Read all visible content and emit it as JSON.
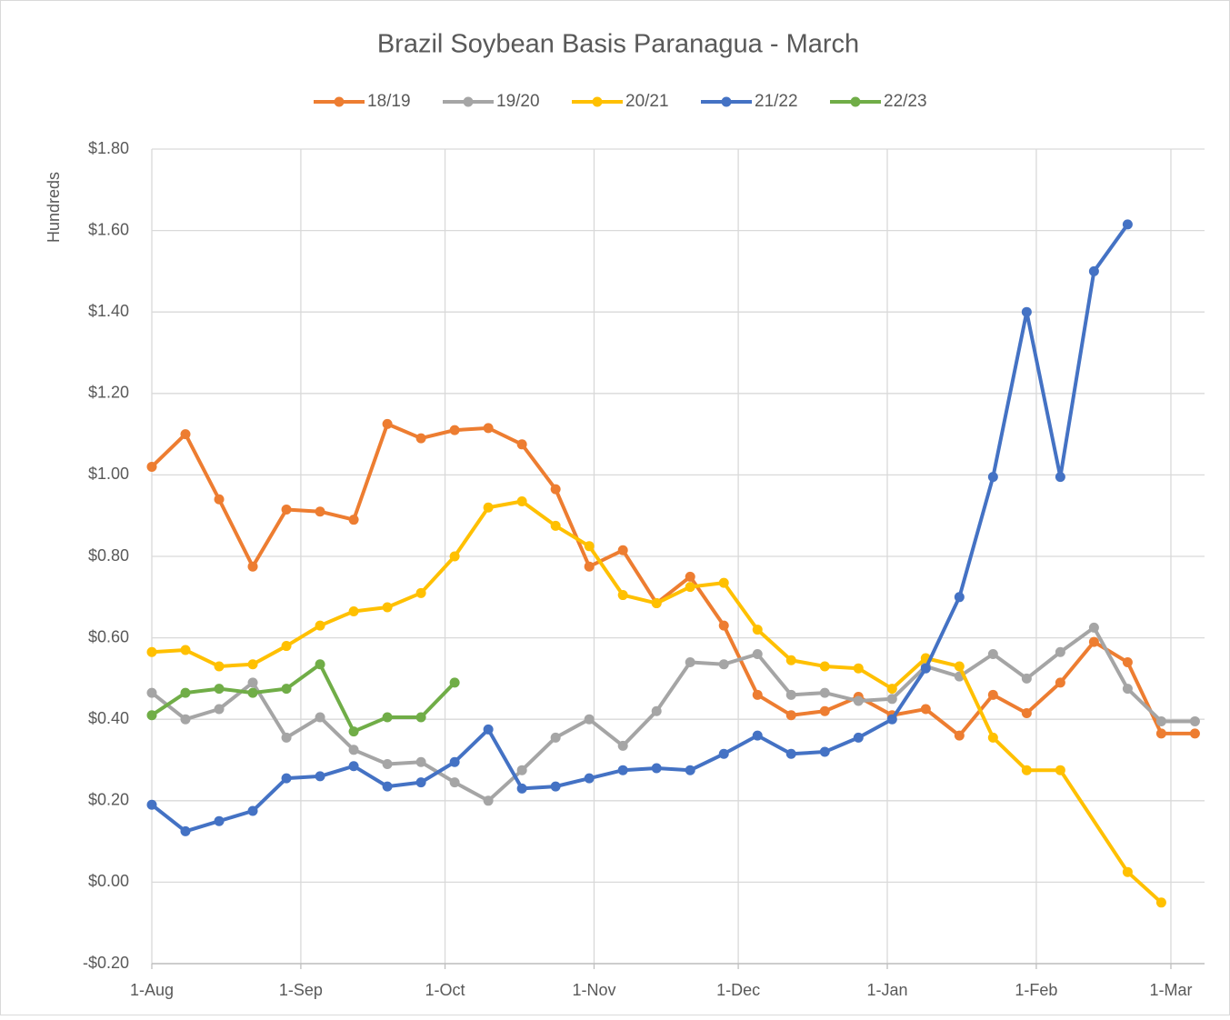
{
  "chart_data": {
    "type": "line",
    "title": "Brazil Soybean Basis Paranagua - March",
    "y_label": "Hundreds",
    "xlim": [
      0,
      219
    ],
    "xticks": [
      {
        "value": 0,
        "label": "1-Aug"
      },
      {
        "value": 31,
        "label": "1-Sep"
      },
      {
        "value": 61,
        "label": "1-Oct"
      },
      {
        "value": 92,
        "label": "1-Nov"
      },
      {
        "value": 122,
        "label": "1-Dec"
      },
      {
        "value": 153,
        "label": "1-Jan"
      },
      {
        "value": 184,
        "label": "1-Feb"
      },
      {
        "value": 212,
        "label": "1-Mar"
      }
    ],
    "ylim": [
      -0.2,
      1.8
    ],
    "yticks": [
      {
        "value": -0.2,
        "label": "-$0.20"
      },
      {
        "value": 0,
        "label": "$0.00"
      },
      {
        "value": 0.2,
        "label": "$0.20"
      },
      {
        "value": 0.4,
        "label": "$0.40"
      },
      {
        "value": 0.6,
        "label": "$0.60"
      },
      {
        "value": 0.8,
        "label": "$0.80"
      },
      {
        "value": 1.0,
        "label": "$1.00"
      },
      {
        "value": 1.2,
        "label": "$1.20"
      },
      {
        "value": 1.4,
        "label": "$1.40"
      },
      {
        "value": 1.6,
        "label": "$1.60"
      },
      {
        "value": 1.8,
        "label": "$1.80"
      }
    ],
    "grid": true,
    "legend": "top",
    "series": [
      {
        "name": "18/19",
        "color": "#ED7D31",
        "x": [
          0,
          7,
          14,
          21,
          28,
          35,
          42,
          49,
          56,
          63,
          70,
          77,
          84,
          91,
          98,
          105,
          112,
          119,
          126,
          133,
          140,
          147,
          154,
          161,
          168,
          175,
          182,
          189,
          196,
          203,
          210,
          217
        ],
        "values": [
          1.02,
          1.1,
          0.94,
          0.775,
          0.915,
          0.91,
          0.89,
          1.125,
          1.09,
          1.11,
          1.115,
          1.075,
          0.965,
          0.775,
          0.815,
          0.685,
          0.75,
          0.63,
          0.46,
          0.41,
          0.42,
          0.455,
          0.41,
          0.425,
          0.36,
          0.46,
          0.415,
          0.49,
          0.59,
          0.54,
          0.365,
          0.365
        ]
      },
      {
        "name": "19/20",
        "color": "#A5A5A5",
        "x": [
          0,
          7,
          14,
          21,
          28,
          35,
          42,
          49,
          56,
          63,
          70,
          77,
          84,
          91,
          98,
          105,
          112,
          119,
          126,
          133,
          140,
          147,
          154,
          161,
          168,
          175,
          182,
          189,
          196,
          203,
          210,
          217
        ],
        "values": [
          0.465,
          0.4,
          0.425,
          0.49,
          0.355,
          0.405,
          0.325,
          0.29,
          0.295,
          0.245,
          0.2,
          0.275,
          0.355,
          0.4,
          0.335,
          0.42,
          0.54,
          0.535,
          0.56,
          0.46,
          0.465,
          0.445,
          0.45,
          0.53,
          0.505,
          0.56,
          0.5,
          0.565,
          0.625,
          0.475,
          0.395,
          0.395
        ]
      },
      {
        "name": "20/21",
        "color": "#FFC000",
        "x": [
          0,
          7,
          14,
          21,
          28,
          35,
          42,
          49,
          56,
          63,
          70,
          77,
          84,
          91,
          98,
          105,
          112,
          119,
          126,
          133,
          140,
          147,
          154,
          161,
          168,
          175,
          182,
          189,
          203,
          210
        ],
        "values": [
          0.565,
          0.57,
          0.53,
          0.535,
          0.58,
          0.63,
          0.665,
          0.675,
          0.71,
          0.8,
          0.92,
          0.935,
          0.875,
          0.825,
          0.705,
          0.685,
          0.725,
          0.735,
          0.62,
          0.545,
          0.53,
          0.525,
          0.475,
          0.55,
          0.53,
          0.355,
          0.275,
          0.275,
          0.025,
          -0.05
        ]
      },
      {
        "name": "21/22",
        "color": "#4472C4",
        "x": [
          0,
          7,
          14,
          21,
          28,
          35,
          42,
          49,
          56,
          63,
          70,
          77,
          84,
          91,
          98,
          105,
          112,
          119,
          126,
          133,
          140,
          147,
          154,
          161,
          168,
          175,
          182,
          189,
          196,
          203
        ],
        "values": [
          0.19,
          0.125,
          0.15,
          0.175,
          0.255,
          0.26,
          0.285,
          0.235,
          0.245,
          0.295,
          0.375,
          0.23,
          0.235,
          0.255,
          0.275,
          0.28,
          0.275,
          0.315,
          0.36,
          0.315,
          0.32,
          0.355,
          0.4,
          0.525,
          0.7,
          0.995,
          1.4,
          0.995,
          1.5,
          1.615
        ]
      },
      {
        "name": "22/23",
        "color": "#70AD47",
        "x": [
          0,
          7,
          14,
          21,
          28,
          35,
          42,
          49,
          56,
          63
        ],
        "values": [
          0.41,
          0.465,
          0.475,
          0.465,
          0.475,
          0.535,
          0.37,
          0.405,
          0.405,
          0.49
        ]
      }
    ]
  }
}
